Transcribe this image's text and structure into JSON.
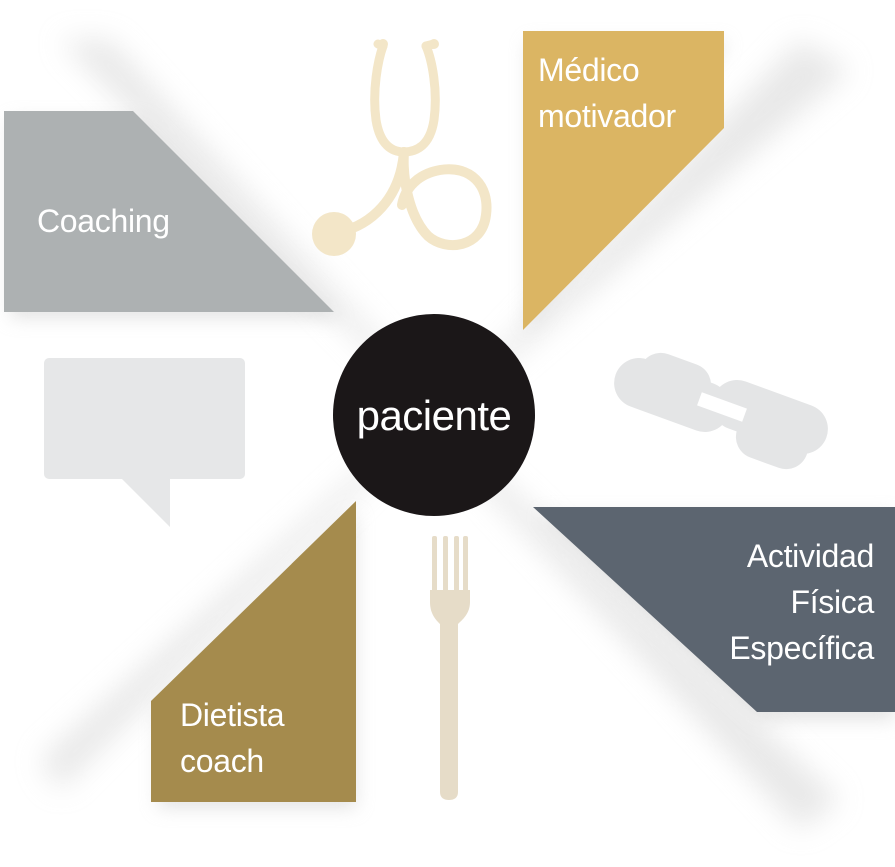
{
  "center": {
    "label": "paciente",
    "color": "#1b1718"
  },
  "sectors": [
    {
      "id": "medico",
      "lines": [
        "Médico",
        "motivador"
      ],
      "color": "#dbb563"
    },
    {
      "id": "coaching",
      "lines": [
        "Coaching"
      ],
      "color": "#adb1b2"
    },
    {
      "id": "actividad",
      "lines": [
        "Actividad",
        "Física",
        "Específica"
      ],
      "color": "#5c6570"
    },
    {
      "id": "dietista",
      "lines": [
        "Dietista",
        "coach"
      ],
      "color": "#a58b4d"
    }
  ],
  "icons": [
    {
      "name": "stethoscope-icon",
      "color": "#f3e6c8"
    },
    {
      "name": "speech-bubble-icon",
      "color": "#e6e7e8"
    },
    {
      "name": "dumbbell-icon",
      "color": "#e4e5e6"
    },
    {
      "name": "fork-icon",
      "color": "#e6dcc8"
    }
  ]
}
